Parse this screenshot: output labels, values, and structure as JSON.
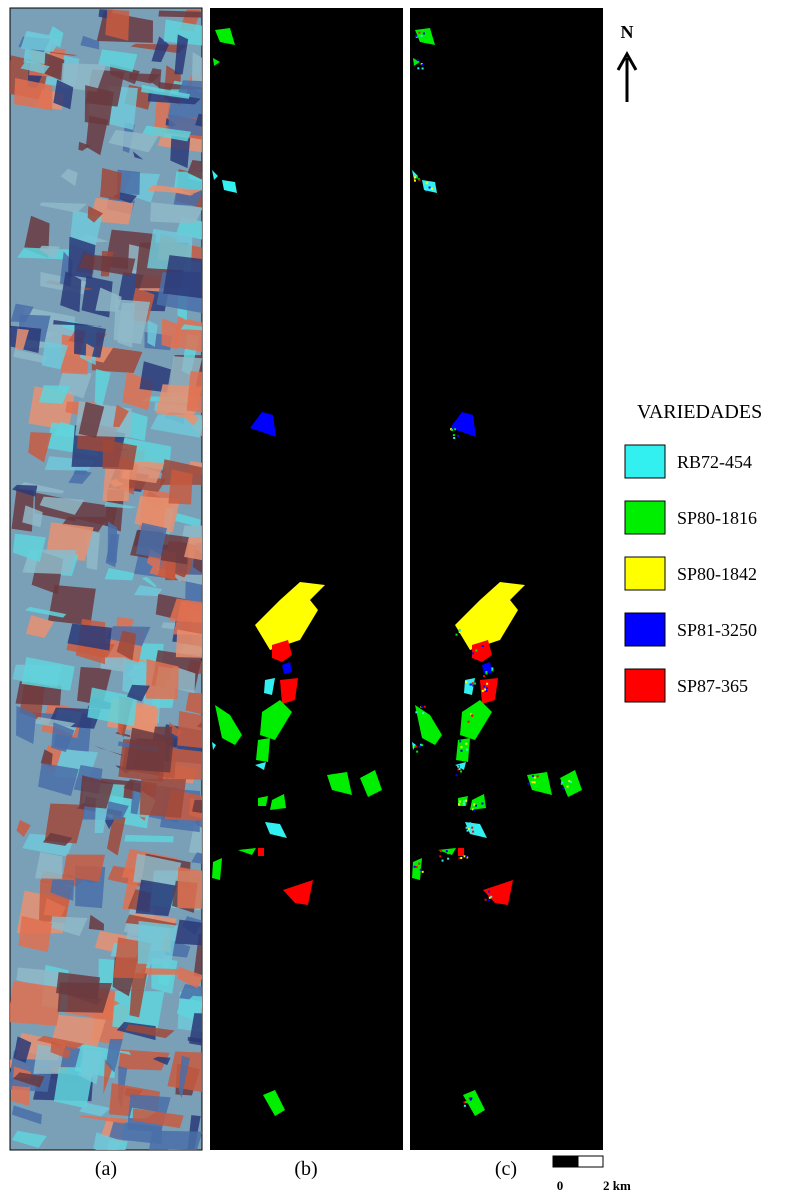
{
  "north": "N",
  "legend": {
    "title": "VARIEDADES",
    "items": [
      {
        "name": "RB72-454",
        "color": "#33f0f0"
      },
      {
        "name": "SP80-1816",
        "color": "#00ee00"
      },
      {
        "name": "SP80-1842",
        "color": "#ffff00"
      },
      {
        "name": "SP81-3250",
        "color": "#0000ff"
      },
      {
        "name": "SP87-365",
        "color": "#ff0000"
      }
    ]
  },
  "panels": [
    "(a)",
    "(b)",
    "(c)"
  ],
  "scale": {
    "start": "0",
    "end": "2 km"
  }
}
